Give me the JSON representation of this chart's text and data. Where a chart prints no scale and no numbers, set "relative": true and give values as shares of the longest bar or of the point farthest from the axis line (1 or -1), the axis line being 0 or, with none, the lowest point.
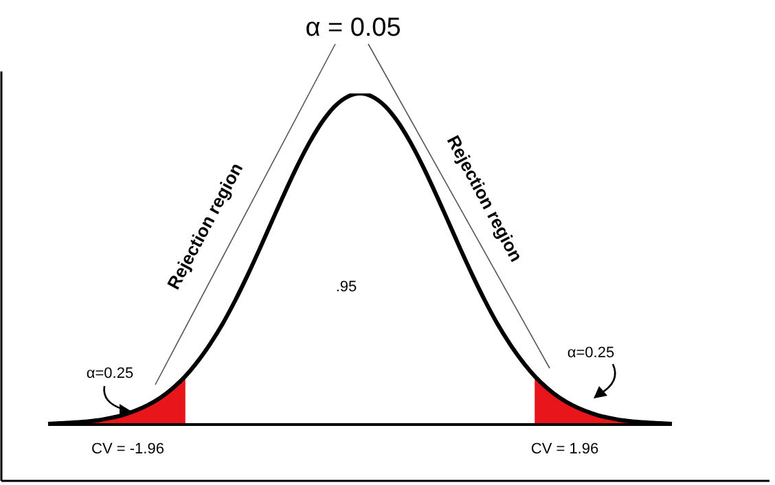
{
  "chart_data": {
    "type": "line",
    "title": "α = 0.05",
    "relative": true,
    "categories": [
      null,
      null,
      null,
      null,
      null,
      null,
      null,
      null,
      null,
      null,
      null,
      null,
      null,
      null,
      null,
      null,
      null,
      null,
      null,
      null,
      null,
      null,
      null,
      null,
      null,
      null,
      null,
      null,
      null,
      null,
      null,
      null,
      null,
      null,
      null,
      null,
      null,
      null,
      null,
      null,
      null,
      null,
      null,
      null,
      null,
      null,
      null,
      null,
      null,
      null,
      null
    ],
    "series": [
      {
        "color": "#000000",
        "values": [
          0.002,
          0.004,
          0.006,
          0.009,
          0.013,
          0.02,
          0.029,
          0.042,
          0.059,
          0.081,
          0.11,
          0.146,
          0.191,
          0.244,
          0.305,
          0.375,
          0.452,
          0.534,
          0.619,
          0.703,
          0.783,
          0.855,
          0.916,
          0.962,
          0.99,
          1,
          0.99,
          0.962,
          0.916,
          0.855,
          0.783,
          0.703,
          0.619,
          0.534,
          0.452,
          0.375,
          0.305,
          0.244,
          0.191,
          0.146,
          0.11,
          0.081,
          0.059,
          0.042,
          0.029,
          0.02,
          0.013,
          0.009,
          0.006,
          0.004,
          0.002
        ]
      },
      {
        "type": "area",
        "color": "#e8161b",
        "values": [
          0.002,
          0.004,
          0.006,
          0.009,
          0.013,
          0.02,
          0.029,
          0.042,
          0.059,
          0.081,
          0.11,
          0.146,
          null,
          null,
          null,
          null,
          null,
          null,
          null,
          null,
          null,
          null,
          null,
          null,
          null,
          null,
          null,
          null,
          null,
          null,
          null,
          null,
          null,
          null,
          null,
          null,
          null,
          null,
          null,
          0.146,
          0.11,
          0.081,
          0.059,
          0.042,
          0.029,
          0.02,
          0.013,
          0.009,
          0.006,
          0.004,
          0.002
        ]
      }
    ],
    "annotations": [
      "Rejection region",
      "Rejection region",
      ".95",
      "α=0.25",
      "α=0.25",
      "CV = -1.96",
      "CV = 1.96"
    ]
  }
}
